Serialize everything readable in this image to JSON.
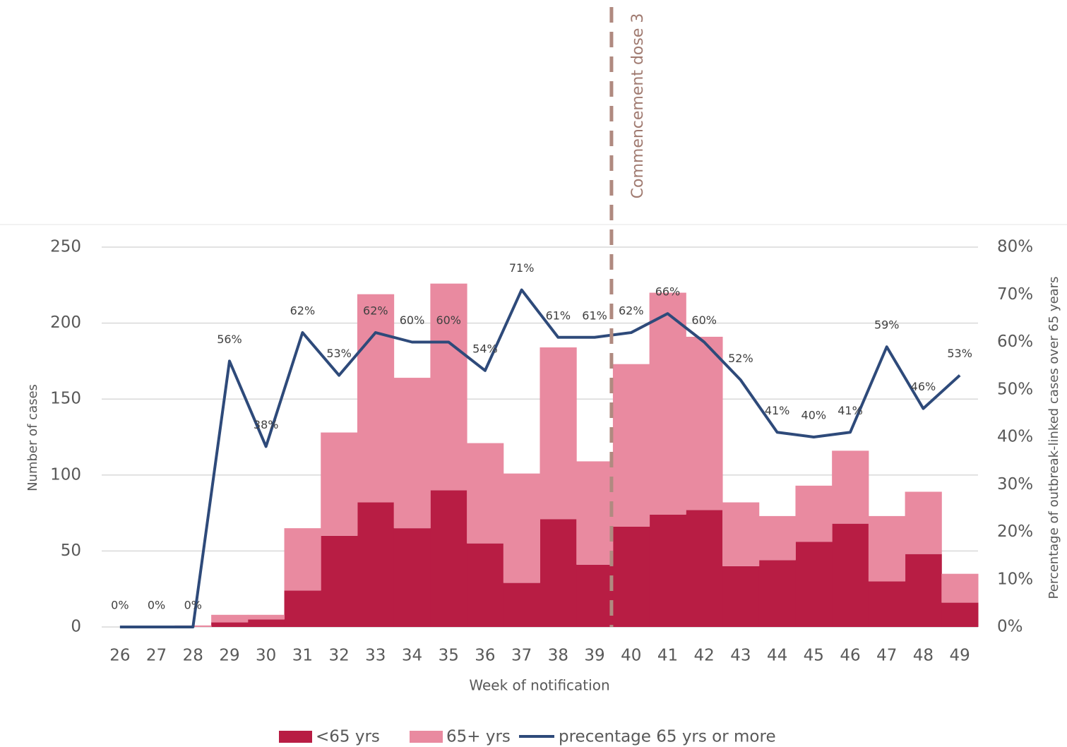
{
  "chart_data": {
    "type": "bar",
    "stacked": true,
    "categories": [
      "26",
      "27",
      "28",
      "29",
      "30",
      "31",
      "32",
      "33",
      "34",
      "35",
      "36",
      "37",
      "38",
      "39",
      "40",
      "41",
      "42",
      "43",
      "44",
      "45",
      "46",
      "47",
      "48",
      "49"
    ],
    "series": [
      {
        "name": "<65 yrs",
        "color": "#b81d44",
        "values": [
          0,
          0,
          0,
          3,
          5,
          24,
          60,
          82,
          65,
          90,
          55,
          29,
          71,
          41,
          66,
          74,
          77,
          40,
          44,
          56,
          68,
          30,
          48,
          16
        ]
      },
      {
        "name": "65+ yrs",
        "color": "#e98aa0",
        "values": [
          0,
          0,
          1,
          5,
          3,
          41,
          68,
          137,
          99,
          136,
          66,
          72,
          113,
          68,
          107,
          146,
          114,
          42,
          29,
          37,
          48,
          43,
          41,
          19
        ]
      },
      {
        "name": "precentage 65 yrs or more",
        "type": "line",
        "axis": "y2",
        "color": "#2e4a7a",
        "values": [
          0,
          0,
          0,
          56,
          38,
          62,
          53,
          62,
          60,
          60,
          54,
          71,
          61,
          61,
          62,
          66,
          60,
          52,
          41,
          40,
          41,
          59,
          46,
          53
        ],
        "value_labels": [
          "0%",
          "0%",
          "0%",
          "56%",
          "38%",
          "62%",
          "53%",
          "62%",
          "60%",
          "60%",
          "54%",
          "71%",
          "61%",
          "61%",
          "62%",
          "66%",
          "60%",
          "52%",
          "41%",
          "40%",
          "41%",
          "59%",
          "46%",
          "53%"
        ]
      }
    ],
    "ylim": [
      0,
      250
    ],
    "yticks": [
      0,
      50,
      100,
      150,
      200,
      250
    ],
    "y2lim": [
      0,
      80
    ],
    "y2ticks": [
      {
        "value": 0,
        "label": "0%"
      },
      {
        "value": 10,
        "label": "10%"
      },
      {
        "value": 20,
        "label": "20%"
      },
      {
        "value": 30,
        "label": "30%"
      },
      {
        "value": 40,
        "label": "40%"
      },
      {
        "value": 50,
        "label": "50%"
      },
      {
        "value": 60,
        "label": "60%"
      },
      {
        "value": 70,
        "label": "70%"
      },
      {
        "value": 80,
        "label": "80%"
      }
    ],
    "grid": true,
    "xlabel": "Week of notification",
    "ylabel": "Number of cases",
    "y2label": "Percentage of outbreak-linked cases over 65 years",
    "annotation": "Commencement dose 3",
    "legend": "bottom"
  }
}
